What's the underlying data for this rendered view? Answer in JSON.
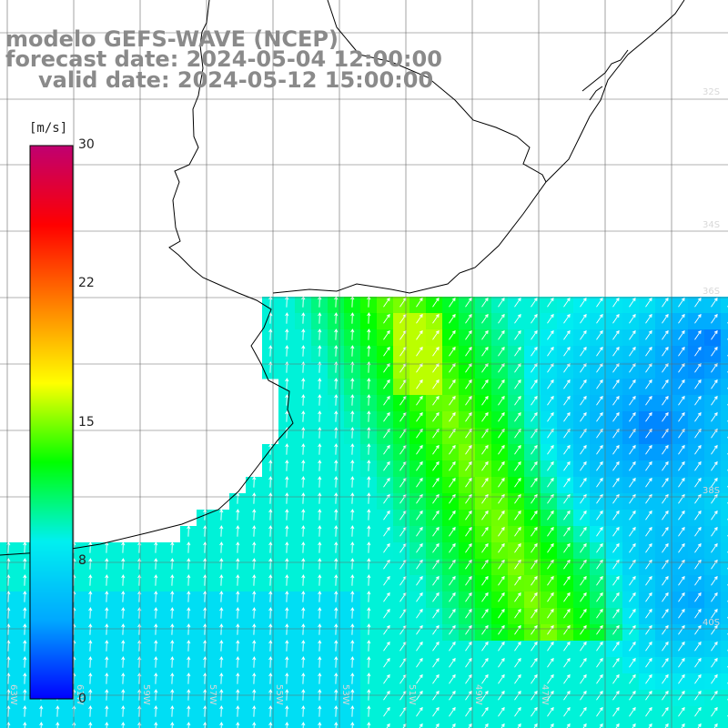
{
  "title": {
    "line1": "modelo GEFS-WAVE (NCEP)",
    "line2": "forecast date: 2024-05-04 12:00:00",
    "line3": "valid date: 2024-05-12 15:00:00"
  },
  "legend": {
    "unit": "[m/s]",
    "ticks": [
      "30",
      "22",
      "15",
      "8",
      "0"
    ],
    "tick_values": [
      30,
      22,
      15,
      8,
      0
    ],
    "min": 0,
    "max": 30,
    "colors": [
      "#0000ff",
      "#00a8ff",
      "#00f0f0",
      "#00ff00",
      "#ffff00",
      "#ff8000",
      "#ff0000",
      "#c00070"
    ]
  },
  "grid": {
    "lat_labels": [
      "32S",
      "34S",
      "36S",
      "38S",
      "40S"
    ],
    "lon_labels": [
      "63W",
      "61W",
      "59W",
      "57W",
      "55W",
      "53W",
      "51W",
      "49W",
      "47W"
    ]
  },
  "chart_data": {
    "type": "heatmap",
    "variable": "wind speed with direction arrows",
    "unit": "m/s",
    "colorbar_range": [
      0,
      30
    ],
    "regions": [
      {
        "area": "core of strong winds near Uruguay coast",
        "speed": 15
      },
      {
        "area": "shelf south of Rio de la Plata",
        "speed": 11
      },
      {
        "area": "open ocean far east",
        "speed": 4
      },
      {
        "area": "western Argentine coast",
        "speed": 8
      }
    ],
    "prevailing_direction": "northeastward"
  }
}
